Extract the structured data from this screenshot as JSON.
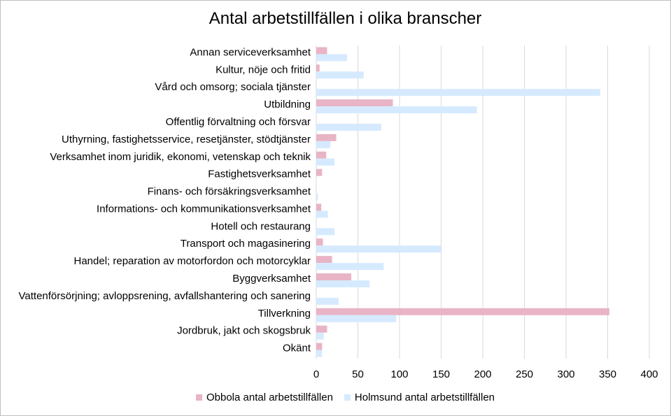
{
  "chart_data": {
    "type": "bar",
    "orientation": "horizontal",
    "title": "Antal arbetstillfällen i olika branscher",
    "categories": [
      "Annan serviceverksamhet",
      "Kultur, nöje och fritid",
      "Vård och omsorg; sociala tjänster",
      "Utbildning",
      "Offentlig förvaltning och försvar",
      "Uthyrning, fastighetsservice, resetjänster, stödtjänster",
      "Verksamhet inom juridik, ekonomi, vetenskap och teknik",
      "Fastighetsverksamhet",
      "Finans- och försäkringsverksamhet",
      "Informations- och kommunikationsverksamhet",
      "Hotell och restaurang",
      "Transport och magasinering",
      "Handel; reparation av motorfordon och motorcyklar",
      "Byggverksamhet",
      "Vattenförsörjning; avloppsrening, avfallshantering och sanering",
      "Tillverkning",
      "Jordbruk, jakt och skogsbruk",
      "Okänt"
    ],
    "series": [
      {
        "name": "Obbola antal arbetstillfällen",
        "color": "#e8b4c6",
        "values": [
          13,
          4,
          0,
          92,
          0,
          24,
          12,
          7,
          0,
          6,
          0,
          8,
          19,
          42,
          0,
          352,
          13,
          7
        ]
      },
      {
        "name": "Holmsund antal arbetstillfällen",
        "color": "#d6eaff",
        "values": [
          37,
          57,
          341,
          193,
          78,
          17,
          22,
          0,
          2,
          14,
          22,
          150,
          81,
          64,
          27,
          96,
          9,
          7
        ]
      }
    ],
    "xlim": [
      0,
      400
    ],
    "xticks": [
      0,
      50,
      100,
      150,
      200,
      250,
      300,
      350,
      400
    ],
    "grid": true,
    "legend_position": "bottom"
  }
}
